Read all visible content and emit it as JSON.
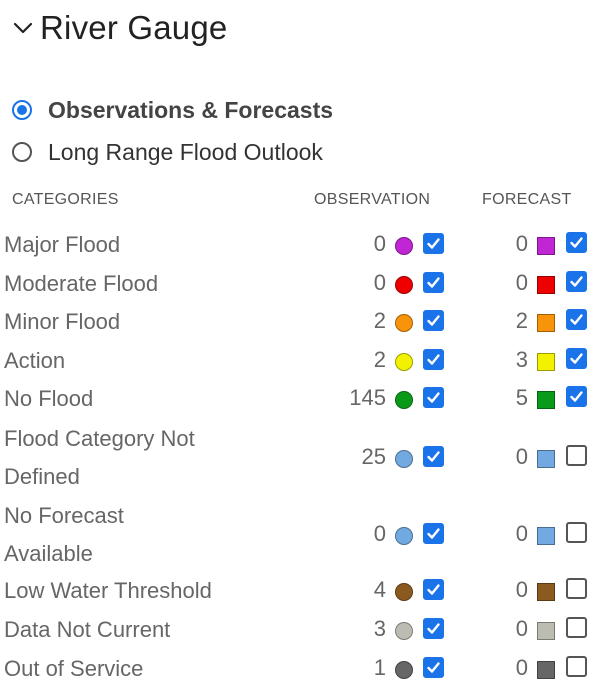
{
  "header": {
    "title": "River Gauge",
    "collapse_icon": "chevron-down-icon"
  },
  "modes": [
    {
      "label": "Observations & Forecasts",
      "selected": true
    },
    {
      "label": "Long Range Flood Outlook",
      "selected": false
    }
  ],
  "columns": {
    "categories": "CATEGORIES",
    "observation": "OBSERVATION",
    "forecast": "FORECAST"
  },
  "colors": {
    "accent": "#1a73e8"
  },
  "categories": [
    {
      "label": "Major Flood",
      "label_lines": [
        "Major Flood"
      ],
      "observation_count": "0",
      "forecast_count": "0",
      "color": "#c026d3",
      "forecast_color": "#c026d3",
      "observation_checked": true,
      "forecast_checked": true
    },
    {
      "label": "Moderate Flood",
      "label_lines": [
        "Moderate Flood"
      ],
      "observation_count": "0",
      "forecast_count": "0",
      "color": "#ee0000",
      "forecast_color": "#ee0000",
      "observation_checked": true,
      "forecast_checked": true
    },
    {
      "label": "Minor Flood",
      "label_lines": [
        "Minor Flood"
      ],
      "observation_count": "2",
      "forecast_count": "2",
      "color": "#f7940a",
      "forecast_color": "#f7940a",
      "observation_checked": true,
      "forecast_checked": true
    },
    {
      "label": "Action",
      "label_lines": [
        "Action"
      ],
      "observation_count": "2",
      "forecast_count": "3",
      "color": "#f2f200",
      "forecast_color": "#f2f200",
      "observation_checked": true,
      "forecast_checked": true
    },
    {
      "label": "No Flood",
      "label_lines": [
        "No Flood"
      ],
      "observation_count": "145",
      "forecast_count": "5",
      "color": "#0a9a1a",
      "forecast_color": "#0a9a1a",
      "observation_checked": true,
      "forecast_checked": true
    },
    {
      "label": "Flood Category Not Defined",
      "label_lines": [
        "Flood Category Not",
        "Defined"
      ],
      "observation_count": "25",
      "forecast_count": "0",
      "color": "#72a9e0",
      "forecast_color": "#72a9e0",
      "observation_checked": true,
      "forecast_checked": false
    },
    {
      "label": "No Forecast Available",
      "label_lines": [
        "No Forecast",
        "Available"
      ],
      "observation_count": "0",
      "forecast_count": "0",
      "color": "#72a9e0",
      "forecast_color": "#72a9e0",
      "observation_checked": true,
      "forecast_checked": false
    },
    {
      "label": "Low Water Threshold",
      "label_lines": [
        "Low Water Threshold"
      ],
      "observation_count": "4",
      "forecast_count": "0",
      "color": "#8b5a1e",
      "forecast_color": "#8b5a1e",
      "observation_checked": true,
      "forecast_checked": false
    },
    {
      "label": "Data Not Current",
      "label_lines": [
        "Data Not Current"
      ],
      "observation_count": "3",
      "forecast_count": "0",
      "color": "#bcbcb2",
      "forecast_color": "#bcbcb2",
      "observation_checked": true,
      "forecast_checked": false
    },
    {
      "label": "Out of Service",
      "label_lines": [
        "Out of Service"
      ],
      "observation_count": "1",
      "forecast_count": "0",
      "color": "#666666",
      "forecast_color": "#666666",
      "observation_checked": true,
      "forecast_checked": false
    }
  ]
}
